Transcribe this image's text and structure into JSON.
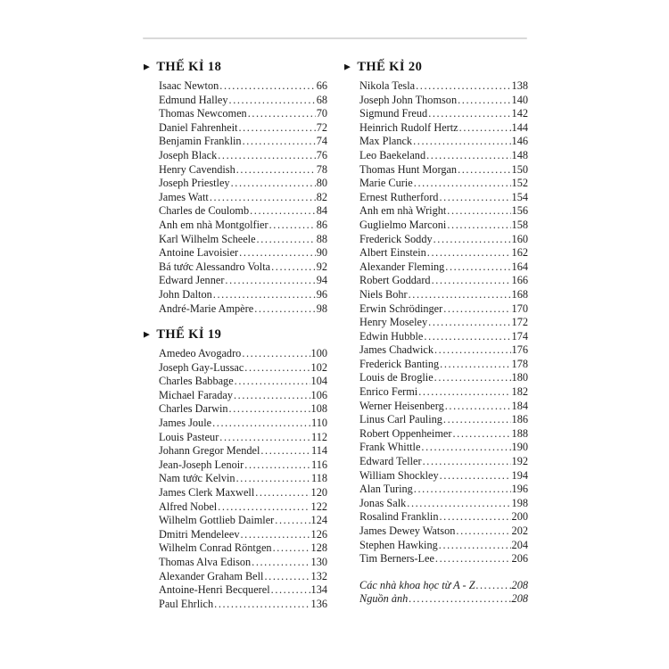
{
  "page": {
    "background": "#ffffff",
    "divider_color": "#d9d9d9",
    "text_color": "#1d1d1d",
    "bullet_glyph": "▶"
  },
  "toc": {
    "columns": [
      {
        "sections": [
          {
            "title": "THẾ KỈ 18",
            "entries": [
              {
                "name": "Isaac Newton",
                "page": "66"
              },
              {
                "name": "Edmund Halley",
                "page": "68"
              },
              {
                "name": "Thomas Newcomen",
                "page": "70"
              },
              {
                "name": "Daniel Fahrenheit",
                "page": "72"
              },
              {
                "name": "Benjamin Franklin",
                "page": "74"
              },
              {
                "name": "Joseph Black",
                "page": "76"
              },
              {
                "name": "Henry Cavendish",
                "page": "78"
              },
              {
                "name": "Joseph Priestley",
                "page": "80"
              },
              {
                "name": "James Watt",
                "page": "82"
              },
              {
                "name": "Charles de Coulomb",
                "page": "84"
              },
              {
                "name": "Anh em nhà Montgolfier",
                "page": "86"
              },
              {
                "name": "Karl Wilhelm Scheele",
                "page": "88"
              },
              {
                "name": "Antoine Lavoisier",
                "page": "90"
              },
              {
                "name": "Bá tước Alessandro Volta",
                "page": "92"
              },
              {
                "name": "Edward Jenner",
                "page": "94"
              },
              {
                "name": "John Dalton",
                "page": "96"
              },
              {
                "name": "André-Marie Ampère",
                "page": "98"
              }
            ]
          },
          {
            "title": "THẾ KỈ 19",
            "entries": [
              {
                "name": "Amedeo Avogadro",
                "page": "100"
              },
              {
                "name": "Joseph Gay-Lussac",
                "page": "102"
              },
              {
                "name": "Charles Babbage",
                "page": "104"
              },
              {
                "name": "Michael Faraday",
                "page": "106"
              },
              {
                "name": "Charles Darwin",
                "page": "108"
              },
              {
                "name": "James Joule",
                "page": "110"
              },
              {
                "name": "Louis Pasteur",
                "page": "112"
              },
              {
                "name": "Johann Gregor Mendel",
                "page": "114"
              },
              {
                "name": "Jean-Joseph Lenoir",
                "page": "116"
              },
              {
                "name": "Nam tước Kelvin",
                "page": "118"
              },
              {
                "name": "James Clerk Maxwell",
                "page": "120"
              },
              {
                "name": "Alfred Nobel",
                "page": "122"
              },
              {
                "name": "Wilhelm Gottlieb Daimler",
                "page": "124"
              },
              {
                "name": "Dmitri Mendeleev",
                "page": "126"
              },
              {
                "name": "Wilhelm Conrad Röntgen",
                "page": "128"
              },
              {
                "name": "Thomas Alva Edison",
                "page": "130"
              },
              {
                "name": "Alexander Graham Bell",
                "page": "132"
              },
              {
                "name": "Antoine-Henri Becquerel",
                "page": "134"
              },
              {
                "name": "Paul Ehrlich",
                "page": "136"
              }
            ]
          }
        ]
      },
      {
        "sections": [
          {
            "title": "THẾ KỈ 20",
            "entries": [
              {
                "name": "Nikola Tesla",
                "page": "138"
              },
              {
                "name": "Joseph John Thomson",
                "page": "140"
              },
              {
                "name": "Sigmund Freud",
                "page": "142"
              },
              {
                "name": "Heinrich Rudolf Hertz",
                "page": "144"
              },
              {
                "name": "Max Planck",
                "page": "146"
              },
              {
                "name": "Leo Baekeland",
                "page": "148"
              },
              {
                "name": "Thomas Hunt Morgan",
                "page": "150"
              },
              {
                "name": "Marie Curie",
                "page": "152"
              },
              {
                "name": "Ernest Rutherford",
                "page": "154"
              },
              {
                "name": "Anh em nhà Wright",
                "page": "156"
              },
              {
                "name": "Guglielmo Marconi",
                "page": "158"
              },
              {
                "name": "Frederick Soddy",
                "page": "160"
              },
              {
                "name": "Albert Einstein",
                "page": "162"
              },
              {
                "name": "Alexander Fleming",
                "page": "164"
              },
              {
                "name": "Robert Goddard",
                "page": "166"
              },
              {
                "name": "Niels Bohr",
                "page": "168"
              },
              {
                "name": "Erwin Schrödinger",
                "page": "170"
              },
              {
                "name": "Henry Moseley",
                "page": "172"
              },
              {
                "name": "Edwin Hubble",
                "page": "174"
              },
              {
                "name": "James Chadwick",
                "page": "176"
              },
              {
                "name": "Frederick Banting",
                "page": "178"
              },
              {
                "name": "Louis de Broglie",
                "page": "180"
              },
              {
                "name": "Enrico Fermi",
                "page": "182"
              },
              {
                "name": "Werner Heisenberg",
                "page": "184"
              },
              {
                "name": "Linus Carl Pauling",
                "page": "186"
              },
              {
                "name": "Robert Oppenheimer",
                "page": "188"
              },
              {
                "name": "Frank Whittle",
                "page": "190"
              },
              {
                "name": "Edward Teller",
                "page": "192"
              },
              {
                "name": "William Shockley",
                "page": "194"
              },
              {
                "name": "Alan Turing",
                "page": "196"
              },
              {
                "name": "Jonas Salk",
                "page": "198"
              },
              {
                "name": "Rosalind Franklin",
                "page": "200"
              },
              {
                "name": "James Dewey Watson",
                "page": "202"
              },
              {
                "name": "Stephen Hawking",
                "page": "204"
              },
              {
                "name": "Tim Berners-Lee",
                "page": "206"
              }
            ]
          }
        ],
        "back_matter": [
          {
            "name": "Các nhà khoa học từ A - Z",
            "page": "208"
          },
          {
            "name": "Nguồn ảnh",
            "page": "208"
          }
        ]
      }
    ]
  }
}
